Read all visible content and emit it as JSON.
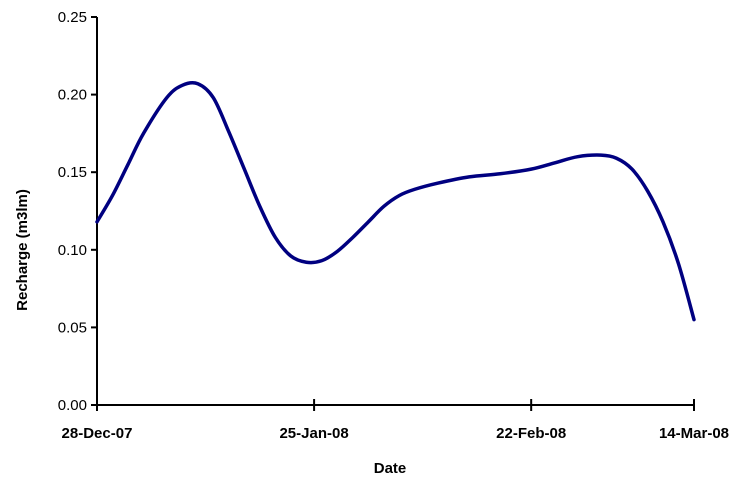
{
  "chart_data": {
    "type": "line",
    "title": "",
    "xlabel": "Date",
    "ylabel": "Recharge (m3lm)",
    "ylim": [
      0,
      0.25
    ],
    "xlim": [
      "2007-12-28",
      "2008-03-14"
    ],
    "yticks": [
      "0.00",
      "0.05",
      "0.10",
      "0.15",
      "0.20",
      "0.25"
    ],
    "xticks": [
      {
        "date": "2007-12-28",
        "label": "28-Dec-07"
      },
      {
        "date": "2008-01-25",
        "label": "25-Jan-08"
      },
      {
        "date": "2008-02-22",
        "label": "22-Feb-08"
      },
      {
        "date": "2008-03-14",
        "label": "14-Mar-08"
      }
    ],
    "grid": false,
    "legend": "none",
    "series": [
      {
        "color": "#000080",
        "x": [
          "2007-12-28",
          "2007-12-30",
          "2008-01-01",
          "2008-01-03",
          "2008-01-06",
          "2008-01-08",
          "2008-01-10",
          "2008-01-12",
          "2008-01-14",
          "2008-01-16",
          "2008-01-18",
          "2008-01-20",
          "2008-01-22",
          "2008-01-24",
          "2008-01-26",
          "2008-01-28",
          "2008-01-30",
          "2008-02-01",
          "2008-02-03",
          "2008-02-05",
          "2008-02-07",
          "2008-02-10",
          "2008-02-14",
          "2008-02-18",
          "2008-02-22",
          "2008-02-25",
          "2008-02-28",
          "2008-03-02",
          "2008-03-04",
          "2008-03-06",
          "2008-03-08",
          "2008-03-10",
          "2008-03-12",
          "2008-03-14"
        ],
        "y": [
          0.118,
          0.135,
          0.155,
          0.175,
          0.198,
          0.206,
          0.207,
          0.198,
          0.176,
          0.152,
          0.128,
          0.108,
          0.096,
          0.092,
          0.093,
          0.099,
          0.108,
          0.118,
          0.128,
          0.135,
          0.139,
          0.143,
          0.147,
          0.149,
          0.152,
          0.156,
          0.16,
          0.161,
          0.159,
          0.152,
          0.138,
          0.118,
          0.091,
          0.055
        ]
      }
    ]
  }
}
